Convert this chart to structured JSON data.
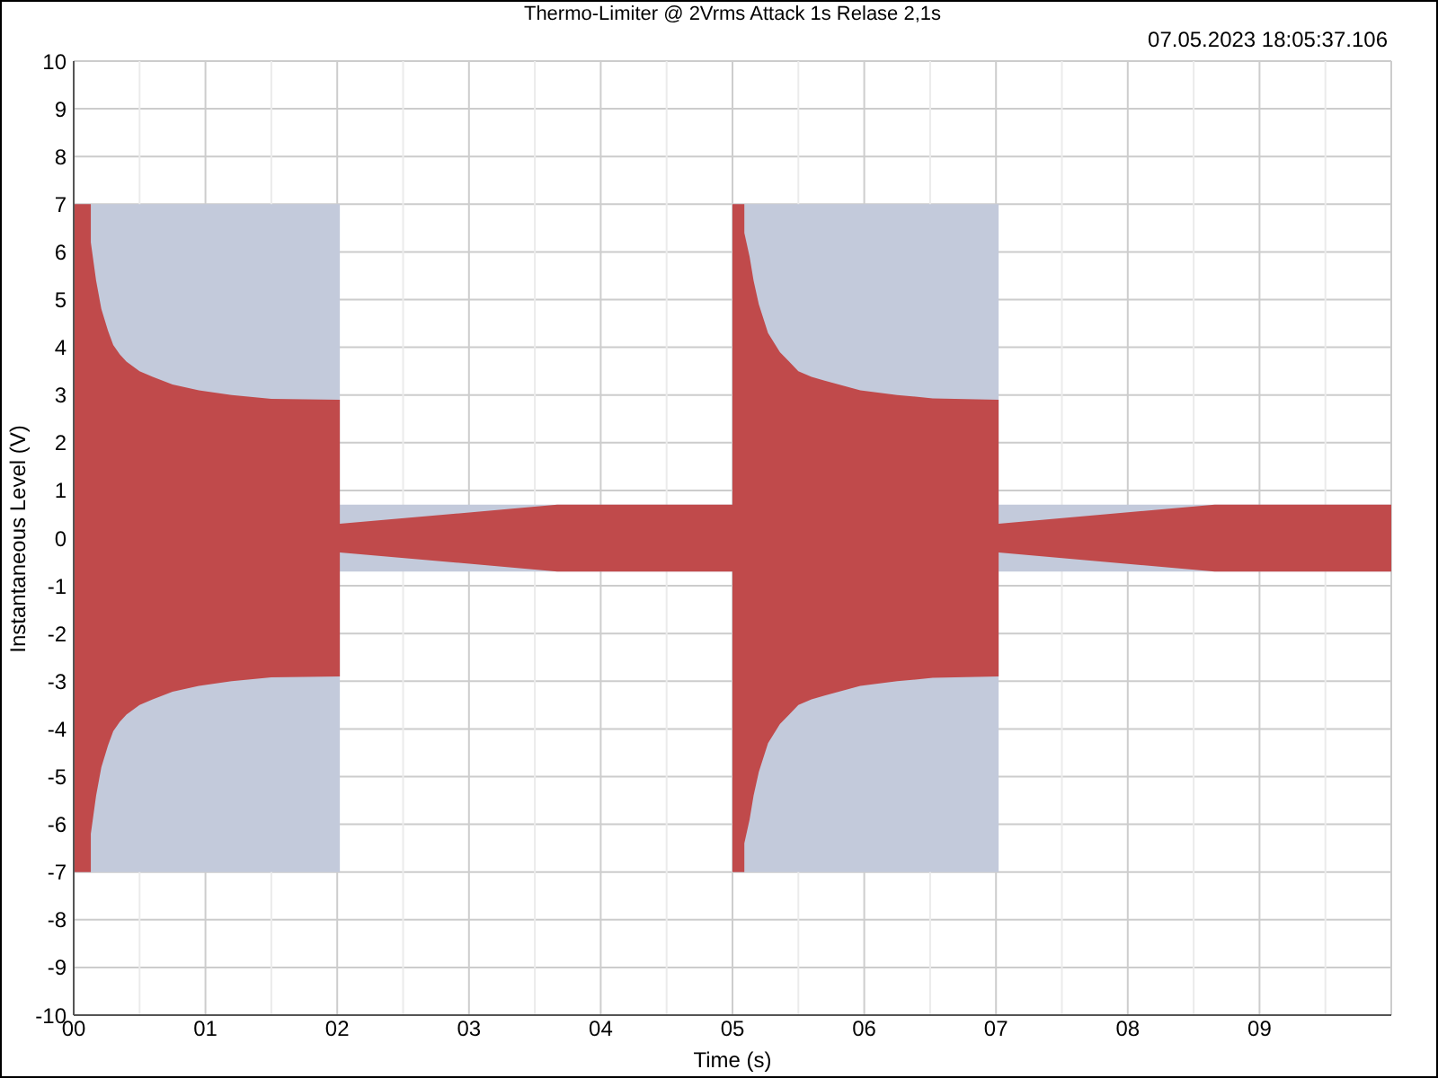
{
  "chart_data": {
    "type": "area",
    "title": "Thermo-Limiter @ 2Vrms Attack 1s Relase 2,1s",
    "xlabel": "Time (s)",
    "ylabel": "Instantaneous Level (V)",
    "annotations": [
      "07.05.2023 18:05:37.106"
    ],
    "xlim": [
      0,
      10
    ],
    "xticks": [
      {
        "value": 0,
        "label": "00"
      },
      {
        "value": 0.5,
        "label": null
      },
      {
        "value": 1,
        "label": "01"
      },
      {
        "value": 1.5,
        "label": null
      },
      {
        "value": 2,
        "label": "02"
      },
      {
        "value": 2.5,
        "label": null
      },
      {
        "value": 3,
        "label": "03"
      },
      {
        "value": 3.5,
        "label": null
      },
      {
        "value": 4,
        "label": "04"
      },
      {
        "value": 4.5,
        "label": null
      },
      {
        "value": 5,
        "label": "05"
      },
      {
        "value": 5.5,
        "label": null
      },
      {
        "value": 6,
        "label": "06"
      },
      {
        "value": 6.5,
        "label": null
      },
      {
        "value": 7,
        "label": "07"
      },
      {
        "value": 7.5,
        "label": null
      },
      {
        "value": 8,
        "label": "08"
      },
      {
        "value": 8.5,
        "label": null
      },
      {
        "value": 9,
        "label": "09"
      },
      {
        "value": 9.5,
        "label": null
      }
    ],
    "ylim": [
      -10,
      10
    ],
    "yticks": [
      -10,
      -9,
      -8,
      -7,
      -6,
      -5,
      -4,
      -3,
      -2,
      -1,
      0,
      1,
      2,
      3,
      4,
      5,
      6,
      7,
      8,
      9,
      10
    ],
    "grid": true,
    "series": [
      {
        "color": "#c3cadb",
        "x": [
          0,
          2.02,
          2.02,
          5.0
        ],
        "values": [
          7,
          7,
          0.7,
          0.7
        ]
      },
      {
        "color": "#c3cadb",
        "x": [
          0,
          2.02,
          2.02,
          5.0
        ],
        "values": [
          -7,
          -7,
          -0.7,
          -0.7
        ]
      },
      {
        "color": "#c3cadb",
        "x": [
          5.0,
          7.02,
          7.02,
          10
        ],
        "values": [
          7,
          7,
          0.7,
          0.7
        ]
      },
      {
        "color": "#c3cadb",
        "x": [
          5.0,
          7.02,
          7.02,
          10
        ],
        "values": [
          -7,
          -7,
          -0.7,
          -0.7
        ]
      },
      {
        "color": "#c04a4b",
        "x": [
          0,
          0.13,
          0.13,
          0.17,
          0.21,
          0.26,
          0.3,
          0.35,
          0.4,
          0.5,
          0.6,
          0.75,
          0.95,
          1.2,
          1.5,
          2.02,
          2.02,
          3.67,
          5.0,
          5.0,
          5.09,
          5.09,
          5.13,
          5.16,
          5.2,
          5.27,
          5.36,
          5.43,
          5.5,
          5.6,
          5.7,
          5.97,
          6.25,
          6.52,
          7.02,
          7.02,
          8.66,
          10
        ],
        "values": [
          7,
          7,
          6.2,
          5.4,
          4.8,
          4.35,
          4.05,
          3.85,
          3.7,
          3.5,
          3.38,
          3.22,
          3.1,
          3.0,
          2.92,
          2.9,
          0.3,
          0.7,
          0.7,
          7,
          7,
          6.4,
          5.9,
          5.4,
          4.9,
          4.3,
          3.9,
          3.7,
          3.5,
          3.38,
          3.3,
          3.1,
          3.0,
          2.93,
          2.9,
          0.3,
          0.7,
          0.7
        ]
      },
      {
        "color": "#c04a4b",
        "x": [
          0,
          0.13,
          0.13,
          0.17,
          0.21,
          0.26,
          0.3,
          0.35,
          0.4,
          0.5,
          0.6,
          0.75,
          0.95,
          1.2,
          1.5,
          2.02,
          2.02,
          3.67,
          5.0,
          5.0,
          5.09,
          5.09,
          5.13,
          5.16,
          5.2,
          5.27,
          5.36,
          5.43,
          5.5,
          5.6,
          5.7,
          5.97,
          6.25,
          6.52,
          7.02,
          7.02,
          8.66,
          10
        ],
        "values": [
          -7,
          -7,
          -6.2,
          -5.4,
          -4.8,
          -4.35,
          -4.05,
          -3.85,
          -3.7,
          -3.5,
          -3.38,
          -3.22,
          -3.1,
          -3.0,
          -2.92,
          -2.9,
          -0.3,
          -0.7,
          -0.7,
          -7,
          -7,
          -6.4,
          -5.9,
          -5.4,
          -4.9,
          -4.3,
          -3.9,
          -3.7,
          -3.5,
          -3.38,
          -3.3,
          -3.1,
          -3.0,
          -2.93,
          -2.9,
          -0.3,
          -0.7,
          -0.7
        ]
      }
    ]
  }
}
